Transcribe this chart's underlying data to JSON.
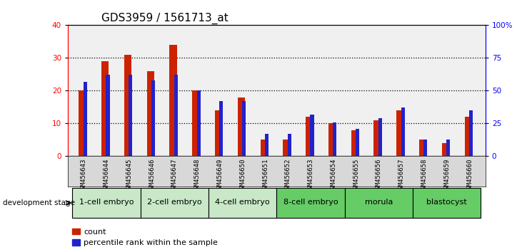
{
  "title": "GDS3959 / 1561713_at",
  "samples": [
    "GSM456643",
    "GSM456644",
    "GSM456645",
    "GSM456646",
    "GSM456647",
    "GSM456648",
    "GSM456649",
    "GSM456650",
    "GSM456651",
    "GSM456652",
    "GSM456653",
    "GSM456654",
    "GSM456655",
    "GSM456656",
    "GSM456657",
    "GSM456658",
    "GSM456659",
    "GSM456660"
  ],
  "count_values": [
    20,
    29,
    31,
    26,
    34,
    20,
    14,
    18,
    5,
    5,
    12,
    10,
    8,
    11,
    14,
    5,
    4,
    12
  ],
  "percentile_values": [
    57,
    62,
    62,
    58,
    62,
    50,
    42,
    42,
    17,
    17,
    32,
    26,
    21,
    29,
    37,
    13,
    13,
    35
  ],
  "stages": [
    {
      "name": "1-cell embryo",
      "indices": [
        0,
        1,
        2
      ],
      "color": "#c8e8c8"
    },
    {
      "name": "2-cell embryo",
      "indices": [
        3,
        4,
        5
      ],
      "color": "#c8e8c8"
    },
    {
      "name": "4-cell embryo",
      "indices": [
        6,
        7,
        8
      ],
      "color": "#c8e8c8"
    },
    {
      "name": "8-cell embryo",
      "indices": [
        9,
        10,
        11
      ],
      "color": "#66cc66"
    },
    {
      "name": "morula",
      "indices": [
        12,
        13,
        14
      ],
      "color": "#66cc66"
    },
    {
      "name": "blastocyst",
      "indices": [
        15,
        16,
        17
      ],
      "color": "#66cc66"
    }
  ],
  "bar_color_red": "#cc2200",
  "bar_color_blue": "#2222cc",
  "ylim_left": [
    0,
    40
  ],
  "ylim_right": [
    0,
    100
  ],
  "yticks_left": [
    0,
    10,
    20,
    30,
    40
  ],
  "yticks_right": [
    0,
    25,
    50,
    75,
    100
  ],
  "ytick_labels_right": [
    "0",
    "25",
    "50",
    "75",
    "100%"
  ],
  "bg_plot": "#f0f0f0",
  "bg_sample": "#d8d8d8",
  "title_fontsize": 11,
  "tick_fontsize": 7.5,
  "stage_fontsize": 8,
  "legend_fontsize": 8
}
